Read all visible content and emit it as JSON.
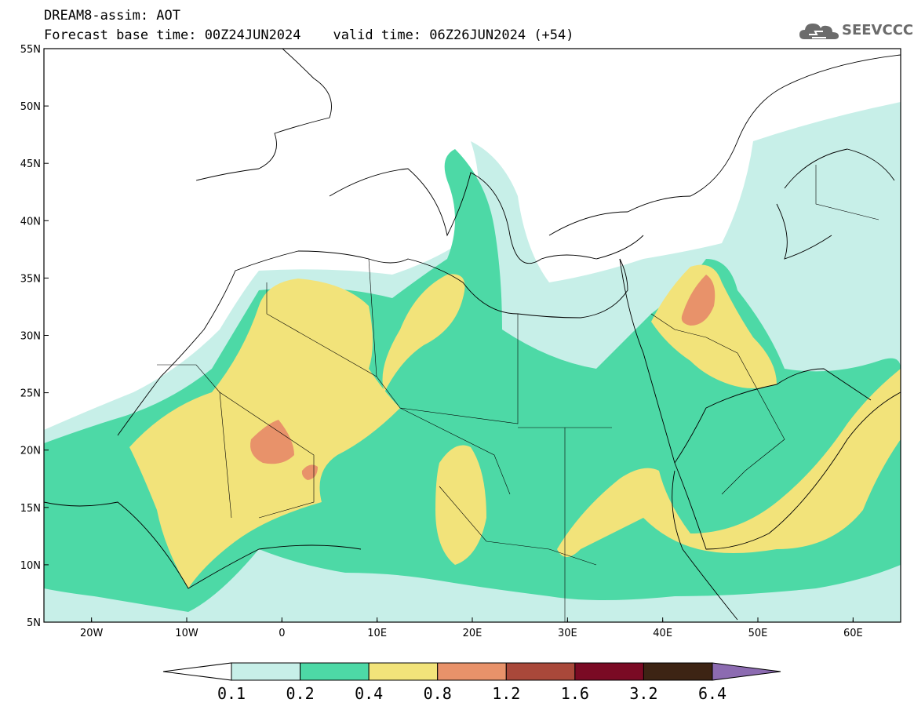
{
  "header": {
    "line1": "DREAM8-assim: AOT",
    "line2": "Forecast base time: 00Z24JUN2024    valid time: 06Z26JUN2024 (+54)"
  },
  "logo": {
    "text": "SEEVCCC",
    "icon": "cloud-icon",
    "color": "#6b6b6b"
  },
  "map": {
    "lon_range": [
      -25,
      65
    ],
    "lat_range": [
      5,
      55
    ],
    "x_ticks": [
      {
        "lon": -20,
        "label": "20W"
      },
      {
        "lon": -10,
        "label": "10W"
      },
      {
        "lon": 0,
        "label": "0"
      },
      {
        "lon": 10,
        "label": "10E"
      },
      {
        "lon": 20,
        "label": "20E"
      },
      {
        "lon": 30,
        "label": "30E"
      },
      {
        "lon": 40,
        "label": "40E"
      },
      {
        "lon": 50,
        "label": "50E"
      },
      {
        "lon": 60,
        "label": "60E"
      }
    ],
    "y_ticks": [
      {
        "lat": 55,
        "label": "55N"
      },
      {
        "lat": 50,
        "label": "50N"
      },
      {
        "lat": 45,
        "label": "45N"
      },
      {
        "lat": 40,
        "label": "40N"
      },
      {
        "lat": 35,
        "label": "35N"
      },
      {
        "lat": 30,
        "label": "30N"
      },
      {
        "lat": 25,
        "label": "25N"
      },
      {
        "lat": 20,
        "label": "20N"
      },
      {
        "lat": 15,
        "label": "15N"
      },
      {
        "lat": 10,
        "label": "10N"
      },
      {
        "lat": 5,
        "label": "5N"
      }
    ]
  },
  "colorbar": {
    "levels": [
      "0.1",
      "0.2",
      "0.4",
      "0.8",
      "1.2",
      "1.6",
      "3.2",
      "6.4"
    ],
    "colors": [
      "#ffffff",
      "#c7efe8",
      "#4dd9a6",
      "#f2e37a",
      "#e8926a",
      "#a9483a",
      "#7a0a24",
      "#3d2414",
      "#8c6bb1"
    ]
  }
}
